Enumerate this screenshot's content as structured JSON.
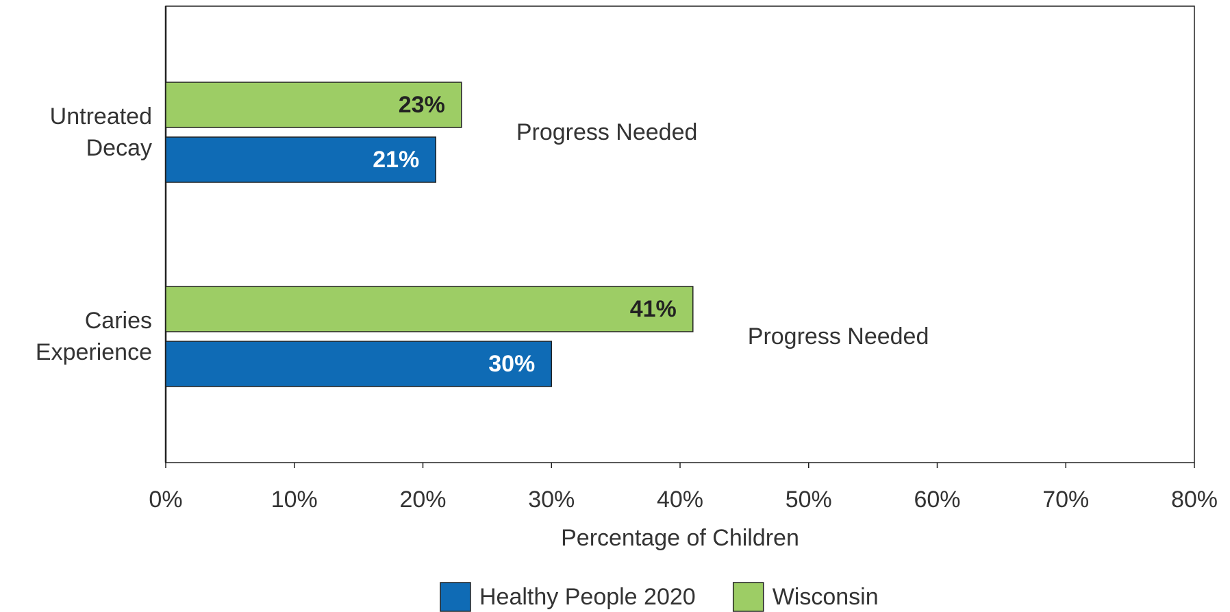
{
  "chart_data": {
    "type": "hbar",
    "categories": [
      "Untreated Decay",
      "Caries Experience"
    ],
    "series": [
      {
        "name": "Healthy People 2020",
        "color": "#0f6bb5",
        "values": [
          21,
          30
        ],
        "value_labels": [
          "21%",
          "30%"
        ]
      },
      {
        "name": "Wisconsin",
        "color": "#9dcd65",
        "values": [
          23,
          41
        ],
        "value_labels": [
          "23%",
          "41%"
        ]
      }
    ],
    "annotations": [
      "Progress Needed",
      "Progress Needed"
    ],
    "xlabel": "Percentage of Children",
    "xlim": [
      0,
      80
    ],
    "xticks": [
      {
        "value": 0,
        "label": "0%"
      },
      {
        "value": 10,
        "label": "10%"
      },
      {
        "value": 20,
        "label": "20%"
      },
      {
        "value": 30,
        "label": "30%"
      },
      {
        "value": 40,
        "label": "40%"
      },
      {
        "value": 50,
        "label": "50%"
      },
      {
        "value": 60,
        "label": "60%"
      },
      {
        "value": 70,
        "label": "70%"
      },
      {
        "value": 80,
        "label": "80%"
      }
    ],
    "legend": "bottom"
  }
}
